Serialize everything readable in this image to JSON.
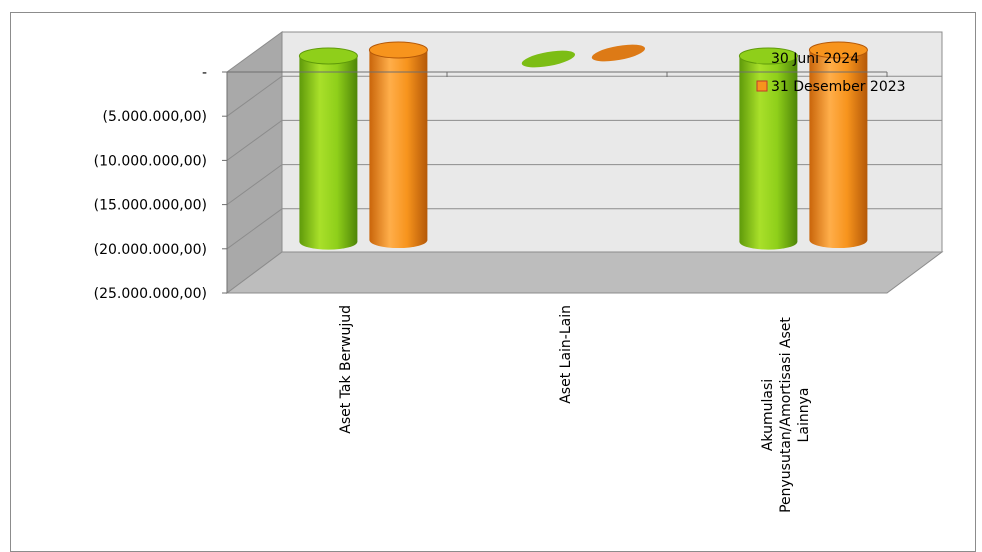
{
  "chart_data": {
    "type": "bar",
    "style": "3d-cylinder",
    "categories": [
      "Aset Tak Berwujud",
      "Aset Lain-Lain",
      "Akumulasi Penyusutan/Amortisasi Aset Lainnya"
    ],
    "category_lines": [
      [
        "Aset Tak Berwujud"
      ],
      [
        "Aset Lain-Lain"
      ],
      [
        "Akumulasi",
        "Penyusutan/Amortisasi Aset",
        "Lainnya"
      ]
    ],
    "series": [
      {
        "name": "30 Juni 2024",
        "color": "#8fcf1a",
        "values": [
          -21000000,
          0,
          -21000000
        ]
      },
      {
        "name": "31 Desember 2023",
        "color": "#f7941d",
        "values": [
          -21500000,
          0,
          -21500000
        ]
      }
    ],
    "ylim": [
      -25000000,
      0
    ],
    "y_ticks": [
      0,
      -5000000,
      -10000000,
      -15000000,
      -20000000,
      -25000000
    ],
    "y_tick_labels": [
      "-",
      "(5.000.000,00)",
      "(10.000.000,00)",
      "(15.000.000,00)",
      "(20.000.000,00)",
      "(25.000.000,00)"
    ],
    "grid": true,
    "legend": "top-right",
    "x_label_rotation": "vertical"
  }
}
